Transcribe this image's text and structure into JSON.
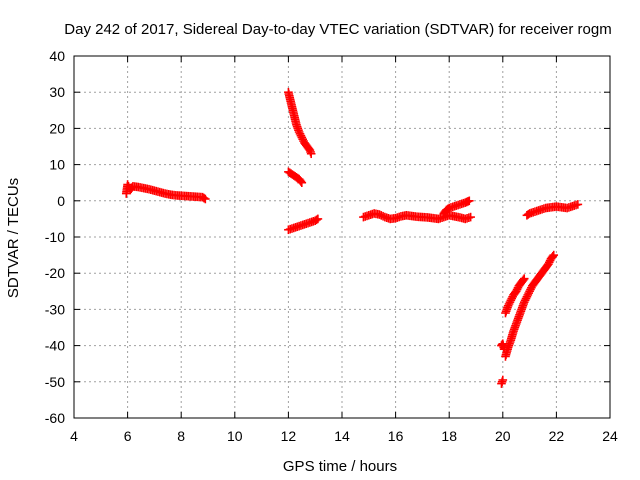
{
  "chart_data": {
    "type": "scatter",
    "title": "Day 242 of 2017, Sidereal Day-to-day VTEC variation (SDTVAR) for receiver rogm",
    "xlabel": "GPS time / hours",
    "ylabel": "SDTVAR / TECUs",
    "xlim": [
      4,
      24
    ],
    "ylim": [
      -60,
      40
    ],
    "xticks": [
      4,
      6,
      8,
      10,
      12,
      14,
      16,
      18,
      20,
      22,
      24
    ],
    "yticks": [
      -60,
      -50,
      -40,
      -30,
      -20,
      -10,
      0,
      10,
      20,
      30,
      40
    ],
    "grid": true,
    "legend": "none",
    "marker": "plus",
    "color": "#ff0000",
    "segments": [
      {
        "x": [
          5.95,
          6.0,
          6.1,
          6.2,
          6.4,
          6.6,
          6.8,
          7.0,
          7.2,
          7.4,
          7.6,
          7.8,
          8.0,
          8.2,
          8.4,
          8.6,
          8.8,
          8.9
        ],
        "y": [
          2.0,
          4.5,
          3.0,
          4.0,
          3.8,
          3.5,
          3.2,
          2.8,
          2.4,
          2.0,
          1.7,
          1.5,
          1.4,
          1.3,
          1.2,
          1.1,
          1.0,
          0.5
        ]
      },
      {
        "x": [
          12.0,
          12.05,
          12.1,
          12.15,
          12.2,
          12.25,
          12.3,
          12.35,
          12.4,
          12.5,
          12.6,
          12.7,
          12.8,
          12.85
        ],
        "y": [
          30.0,
          28.5,
          27.0,
          25.5,
          24.0,
          22.5,
          21.0,
          20.0,
          19.0,
          17.5,
          16.0,
          15.0,
          14.0,
          13.0
        ]
      },
      {
        "x": [
          12.0,
          12.1,
          12.2,
          12.3,
          12.4,
          12.5
        ],
        "y": [
          8.0,
          7.5,
          7.0,
          6.5,
          6.0,
          5.0
        ]
      },
      {
        "x": [
          12.0,
          12.2,
          12.4,
          12.6,
          12.8,
          13.0,
          13.1
        ],
        "y": [
          -8.0,
          -7.5,
          -7.0,
          -6.5,
          -6.0,
          -5.5,
          -5.0
        ]
      },
      {
        "x": [
          14.8,
          15.0,
          15.2,
          15.4,
          15.6,
          15.8,
          16.0,
          16.2,
          16.4,
          16.6,
          16.8,
          17.0,
          17.2,
          17.4,
          17.6,
          17.8,
          18.0,
          18.2,
          18.4,
          18.6,
          18.8
        ],
        "y": [
          -4.5,
          -4.0,
          -3.5,
          -3.8,
          -4.5,
          -5.0,
          -4.8,
          -4.3,
          -4.0,
          -4.2,
          -4.4,
          -4.5,
          -4.6,
          -4.8,
          -5.0,
          -4.5,
          -4.0,
          -4.3,
          -4.6,
          -5.0,
          -4.5
        ]
      },
      {
        "x": [
          17.8,
          17.9,
          18.0,
          18.2,
          18.4,
          18.6,
          18.75
        ],
        "y": [
          -3.5,
          -2.5,
          -2.0,
          -1.5,
          -1.0,
          -0.5,
          0.0
        ]
      },
      {
        "x": [
          19.95,
          20.0,
          20.05
        ],
        "y": [
          -40.0,
          -39.5,
          -41.0
        ]
      },
      {
        "x": [
          19.95,
          20.0
        ],
        "y": [
          -50.5,
          -49.5
        ]
      },
      {
        "x": [
          20.1,
          20.2,
          20.3,
          20.4,
          20.5,
          20.6,
          20.7,
          20.8
        ],
        "y": [
          -31.0,
          -29.0,
          -27.5,
          -26.0,
          -25.0,
          -23.5,
          -22.5,
          -21.5
        ]
      },
      {
        "x": [
          20.1,
          20.2,
          20.3,
          20.4,
          20.5,
          20.6,
          20.7,
          20.8,
          20.9,
          21.0,
          21.1,
          21.2,
          21.3,
          21.4,
          21.5,
          21.6,
          21.7,
          21.8,
          21.9
        ],
        "y": [
          -43.0,
          -40.5,
          -38.5,
          -36.0,
          -34.0,
          -32.0,
          -30.0,
          -28.0,
          -26.5,
          -25.0,
          -23.5,
          -22.5,
          -21.5,
          -20.5,
          -19.5,
          -18.5,
          -17.5,
          -16.0,
          -15.0
        ]
      },
      {
        "x": [
          20.9,
          21.0,
          21.2,
          21.4,
          21.6,
          21.8,
          22.0,
          22.2,
          22.4,
          22.6,
          22.8
        ],
        "y": [
          -4.0,
          -3.5,
          -3.0,
          -2.5,
          -2.0,
          -1.8,
          -1.6,
          -1.8,
          -2.0,
          -1.5,
          -1.0
        ]
      }
    ]
  }
}
